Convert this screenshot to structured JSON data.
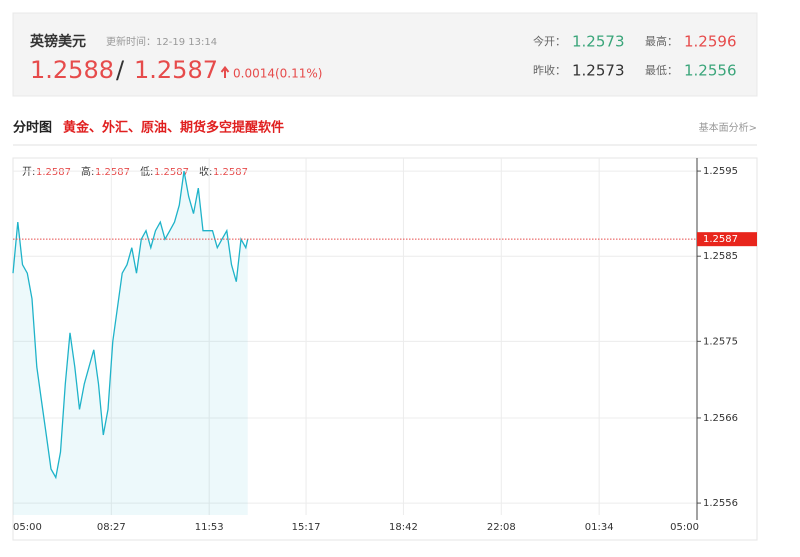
{
  "header": {
    "title": "英镑美元",
    "update_time": "更新时间：12-19 13:14",
    "bid": "1.2588",
    "separator": "/",
    "ask": "1.2587",
    "change": "0.0014(0.11%)",
    "stats": [
      {
        "label": "今开：",
        "value": "1.2573",
        "color": "#3aa57a"
      },
      {
        "label": "最高：",
        "value": "1.2596",
        "color": "#e64b4b"
      },
      {
        "label": "昨收：",
        "value": "1.2573",
        "color": "#333333"
      },
      {
        "label": "最低：",
        "value": "1.2556",
        "color": "#3aa57a"
      }
    ]
  },
  "section": {
    "tab": "分时图",
    "promo": "黄金、外汇、原油、期货多空提醒软件",
    "link": "基本面分析>"
  },
  "ohlc": [
    {
      "label": "开:",
      "value": "1.2587"
    },
    {
      "label": "高:",
      "value": "1.2587"
    },
    {
      "label": "低:",
      "value": "1.2587"
    },
    {
      "label": "收:",
      "value": "1.2587"
    }
  ],
  "chart_data": {
    "type": "area",
    "x": [
      0,
      10,
      20,
      30,
      40,
      50,
      60,
      70,
      80,
      90,
      100,
      110,
      120,
      130,
      140,
      150,
      160,
      170,
      180,
      190,
      200,
      210,
      220,
      230,
      240,
      250,
      260,
      270,
      280,
      290,
      300,
      310,
      320,
      330,
      340,
      350,
      360,
      370,
      380,
      390,
      400,
      410,
      420,
      430,
      440,
      450,
      460,
      470,
      480,
      490,
      494
    ],
    "series": [
      {
        "color": "#1fb3c9",
        "values": [
          1.2583,
          1.2589,
          1.2584,
          1.2583,
          1.258,
          1.2572,
          1.2568,
          1.2564,
          1.256,
          1.2559,
          1.2562,
          1.257,
          1.2576,
          1.2572,
          1.2567,
          1.257,
          1.2572,
          1.2574,
          1.257,
          1.2564,
          1.2567,
          1.2575,
          1.2579,
          1.2583,
          1.2584,
          1.2586,
          1.2583,
          1.2587,
          1.2588,
          1.2586,
          1.2588,
          1.2589,
          1.2587,
          1.2588,
          1.2589,
          1.2591,
          1.2595,
          1.2592,
          1.259,
          1.2593,
          1.2588,
          1.2588,
          1.2588,
          1.2586,
          1.2587,
          1.2588,
          1.2584,
          1.2582,
          1.2587,
          1.2586,
          1.2587
        ]
      }
    ],
    "current_price": 1.2587,
    "xlim": [
      0,
      1440
    ],
    "xticks": [
      {
        "value": 0,
        "label": "05:00"
      },
      {
        "value": 207,
        "label": "08:27"
      },
      {
        "value": 413,
        "label": "11:53"
      },
      {
        "value": 617,
        "label": "15:17"
      },
      {
        "value": 822,
        "label": "18:42"
      },
      {
        "value": 1028,
        "label": "22:08"
      },
      {
        "value": 1234,
        "label": "01:34"
      },
      {
        "value": 1440,
        "label": "05:00"
      }
    ],
    "ylim": [
      1.25546,
      1.25963
    ],
    "yticks": [
      1.2556,
      1.2566,
      1.2575,
      1.2585,
      1.2595
    ],
    "grid": true
  }
}
